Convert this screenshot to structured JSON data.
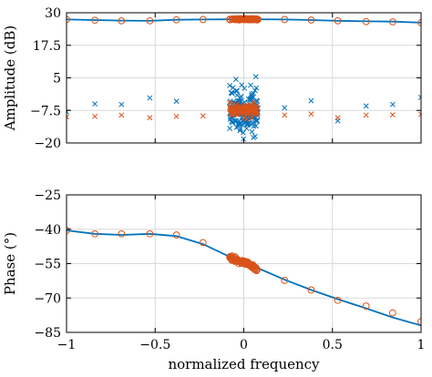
{
  "chart_data": [
    {
      "type": "line",
      "panel": "amplitude",
      "ylabel": "Amplitude (dB)",
      "xlabel": "",
      "xlim": [
        -1,
        1
      ],
      "ylim": [
        -20,
        30
      ],
      "xticks": [
        -1,
        -0.5,
        0,
        0.5,
        1
      ],
      "yticks": [
        30,
        17.5,
        5,
        -7.5,
        -20
      ],
      "ytick_labels": [
        "30",
        "17.5",
        "5",
        "−7.5",
        "−20"
      ],
      "grid": true,
      "series": [
        {
          "kind": "line",
          "color": "#0072BD",
          "x": [
            -1,
            -0.84,
            -0.69,
            -0.53,
            -0.38,
            -0.23,
            -0.08,
            0,
            0.08,
            0.23,
            0.38,
            0.53,
            0.69,
            0.84,
            1
          ],
          "y": [
            27.4,
            27.2,
            27.0,
            26.9,
            27.3,
            27.4,
            27.5,
            27.5,
            27.5,
            27.4,
            27.2,
            26.9,
            26.7,
            26.6,
            26.2
          ]
        },
        {
          "kind": "circle",
          "color": "#D95319",
          "x": [
            -1,
            -0.84,
            -0.69,
            -0.53,
            -0.38,
            -0.23,
            0.23,
            0.38,
            0.53,
            0.69,
            0.84,
            1
          ],
          "y": [
            27.4,
            27.1,
            26.9,
            26.9,
            27.3,
            27.4,
            27.4,
            27.2,
            26.9,
            26.6,
            26.5,
            26.2
          ],
          "cluster": {
            "x_center": 0,
            "x_spread": 0.08,
            "y_center": 27.5,
            "y_spread": 0.25,
            "count": 80
          }
        },
        {
          "kind": "cross",
          "color": "#0072BD",
          "x": [
            -1,
            -0.84,
            -0.69,
            -0.53,
            -0.38,
            0.23,
            0.38,
            0.53,
            0.69,
            0.84,
            1
          ],
          "y": [
            -8.0,
            -5.0,
            -5.2,
            -2.7,
            -4.0,
            -6.5,
            -3.8,
            -11.5,
            -5.8,
            -5.2,
            -2.5
          ],
          "cluster": {
            "x_center": 0,
            "x_spread": 0.08,
            "y_center": -7.5,
            "y_spread": 10,
            "count": 160
          }
        },
        {
          "kind": "cross",
          "color": "#D95319",
          "x": [
            -1,
            -0.84,
            -0.69,
            -0.53,
            -0.38,
            -0.23,
            0.23,
            0.38,
            0.53,
            0.69,
            0.84,
            1
          ],
          "y": [
            -10.0,
            -9.8,
            -9.3,
            -10.3,
            -9.8,
            -9.6,
            -9.3,
            -8.9,
            -10.3,
            -9.3,
            -9.2,
            -9.0
          ],
          "cluster": {
            "x_center": 0,
            "x_spread": 0.08,
            "y_center": -7.5,
            "y_spread": 2.5,
            "count": 120
          }
        }
      ]
    },
    {
      "type": "line",
      "panel": "phase",
      "ylabel": "Phase (°)",
      "xlabel": "normalized frequency",
      "xlim": [
        -1,
        1
      ],
      "ylim": [
        -85,
        -25
      ],
      "xticks": [
        -1,
        -0.5,
        0,
        0.5,
        1
      ],
      "xtick_labels": [
        "−1",
        "−0.5",
        "0",
        "0.5",
        "1"
      ],
      "yticks": [
        -25,
        -40,
        -55,
        -70,
        -85
      ],
      "ytick_labels": [
        "−25",
        "−40",
        "−55",
        "−70",
        "−85"
      ],
      "grid": true,
      "series": [
        {
          "kind": "line",
          "color": "#0072BD",
          "x": [
            -1,
            -0.84,
            -0.69,
            -0.53,
            -0.38,
            -0.23,
            -0.08,
            0,
            0.08,
            0.23,
            0.38,
            0.53,
            0.69,
            0.84,
            1
          ],
          "y": [
            -40.5,
            -42.0,
            -42.5,
            -42.0,
            -43.0,
            -46.5,
            -52.0,
            -54.5,
            -57.0,
            -62.0,
            -66.5,
            -70.5,
            -74.5,
            -78.5,
            -82.0
          ]
        },
        {
          "kind": "circle",
          "color": "#D95319",
          "x": [
            -1,
            -0.84,
            -0.69,
            -0.53,
            -0.38,
            -0.23,
            0.23,
            0.38,
            0.53,
            0.69,
            0.84,
            1
          ],
          "y": [
            -40.5,
            -42.0,
            -42.0,
            -42.0,
            -42.5,
            -45.8,
            -62.3,
            -66.5,
            -71.0,
            -73.5,
            -76.5,
            -80.3
          ],
          "cluster": {
            "x_center": 0,
            "x_spread": 0.08,
            "slope": -30,
            "y_center": -54.7,
            "y_spread": 1.2,
            "count": 70
          }
        }
      ]
    }
  ]
}
